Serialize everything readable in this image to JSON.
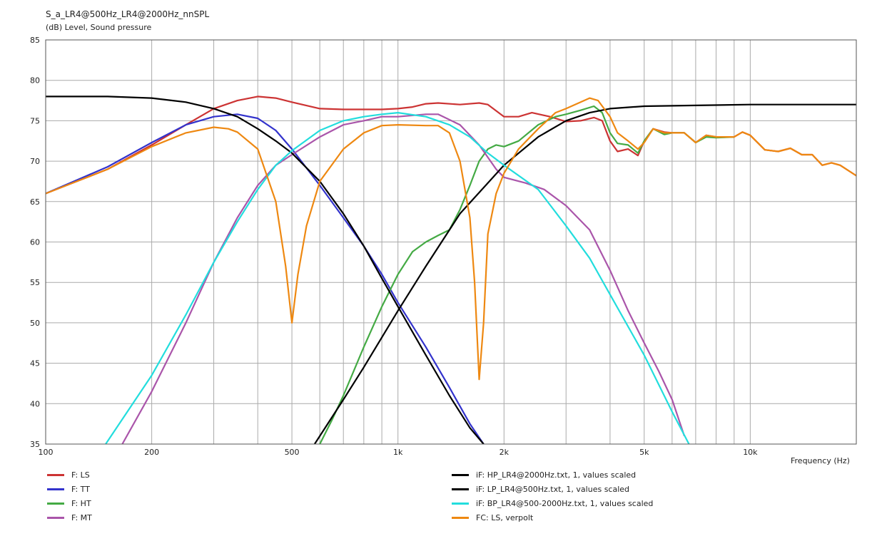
{
  "chart_data": {
    "type": "line",
    "title": "S_a_LR4@500Hz_LR4@2000Hz_nnSPL",
    "subtitle": "(dB)  Level, Sound pressure",
    "xlabel": "Frequency  (Hz)",
    "xscale": "log",
    "xlim": [
      100,
      20000
    ],
    "ylim": [
      35,
      85
    ],
    "grid": true,
    "legend_position": "bottom",
    "y_ticks": [
      "85",
      "80",
      "75",
      "70",
      "65",
      "60",
      "55",
      "50",
      "45",
      "40",
      "35"
    ],
    "x_tick_labels": [
      {
        "value": 100,
        "label": "100"
      },
      {
        "value": 200,
        "label": "200"
      },
      {
        "value": 500,
        "label": "500"
      },
      {
        "value": 1000,
        "label": "1k"
      },
      {
        "value": 2000,
        "label": "2k"
      },
      {
        "value": 5000,
        "label": "5k"
      },
      {
        "value": 10000,
        "label": "10k"
      }
    ],
    "series": [
      {
        "name": "F: LS",
        "color": "#cc3333",
        "points": [
          [
            100,
            66
          ],
          [
            150,
            69
          ],
          [
            200,
            72
          ],
          [
            250,
            74.5
          ],
          [
            300,
            76.5
          ],
          [
            350,
            77.5
          ],
          [
            400,
            78
          ],
          [
            450,
            77.8
          ],
          [
            500,
            77.3
          ],
          [
            600,
            76.5
          ],
          [
            700,
            76.4
          ],
          [
            800,
            76.4
          ],
          [
            900,
            76.4
          ],
          [
            1000,
            76.5
          ],
          [
            1100,
            76.7
          ],
          [
            1200,
            77.1
          ],
          [
            1300,
            77.2
          ],
          [
            1500,
            77
          ],
          [
            1700,
            77.2
          ],
          [
            1800,
            77
          ],
          [
            2000,
            75.5
          ],
          [
            2200,
            75.5
          ],
          [
            2400,
            76
          ],
          [
            2700,
            75.5
          ],
          [
            3000,
            74.9
          ],
          [
            3300,
            75
          ],
          [
            3600,
            75.4
          ],
          [
            3800,
            75
          ],
          [
            4000,
            72.5
          ],
          [
            4200,
            71.2
          ],
          [
            4500,
            71.5
          ],
          [
            4800,
            70.7
          ],
          [
            5000,
            72.5
          ],
          [
            5300,
            74
          ],
          [
            5700,
            73.6
          ],
          [
            6000,
            73.5
          ],
          [
            6500,
            73.5
          ],
          [
            7000,
            72.3
          ],
          [
            7500,
            73.2
          ],
          [
            8000,
            73
          ],
          [
            9000,
            73
          ],
          [
            9500,
            73.6
          ],
          [
            10000,
            73.2
          ],
          [
            11000,
            71.4
          ],
          [
            12000,
            71.2
          ],
          [
            13000,
            71.6
          ],
          [
            14000,
            70.8
          ],
          [
            15000,
            70.8
          ],
          [
            16000,
            69.5
          ],
          [
            17000,
            69.8
          ],
          [
            18000,
            69.5
          ],
          [
            20000,
            68.2
          ]
        ]
      },
      {
        "name": "F: TT",
        "color": "#3333cc",
        "points": [
          [
            100,
            66
          ],
          [
            150,
            69.3
          ],
          [
            200,
            72.3
          ],
          [
            250,
            74.5
          ],
          [
            300,
            75.5
          ],
          [
            350,
            75.8
          ],
          [
            400,
            75.3
          ],
          [
            450,
            73.8
          ],
          [
            500,
            71.5
          ],
          [
            600,
            67
          ],
          [
            700,
            63
          ],
          [
            800,
            59.5
          ],
          [
            900,
            56
          ],
          [
            1000,
            52.5
          ],
          [
            1200,
            47
          ],
          [
            1400,
            42
          ],
          [
            1600,
            37.5
          ],
          [
            1750,
            35
          ]
        ]
      },
      {
        "name": "F: HT",
        "color": "#44aa44",
        "points": [
          [
            600,
            35
          ],
          [
            650,
            38
          ],
          [
            700,
            41
          ],
          [
            800,
            47
          ],
          [
            900,
            52
          ],
          [
            1000,
            56
          ],
          [
            1100,
            58.8
          ],
          [
            1200,
            60
          ],
          [
            1300,
            60.8
          ],
          [
            1400,
            61.5
          ],
          [
            1500,
            64
          ],
          [
            1600,
            67
          ],
          [
            1700,
            70
          ],
          [
            1800,
            71.5
          ],
          [
            1900,
            72
          ],
          [
            2000,
            71.8
          ],
          [
            2200,
            72.5
          ],
          [
            2500,
            74.5
          ],
          [
            2800,
            75.5
          ],
          [
            3000,
            75.8
          ],
          [
            3300,
            76.3
          ],
          [
            3600,
            76.8
          ],
          [
            3800,
            76
          ],
          [
            4000,
            73.5
          ],
          [
            4200,
            72.2
          ],
          [
            4500,
            72
          ],
          [
            4800,
            71
          ],
          [
            5000,
            72.5
          ],
          [
            5300,
            74
          ],
          [
            5700,
            73.3
          ],
          [
            6000,
            73.5
          ],
          [
            6500,
            73.5
          ],
          [
            7000,
            72.3
          ],
          [
            7500,
            73
          ],
          [
            8000,
            72.9
          ],
          [
            9000,
            73
          ]
        ]
      },
      {
        "name": "F: MT",
        "color": "#aa55aa",
        "points": [
          [
            165,
            35
          ],
          [
            200,
            41.5
          ],
          [
            250,
            50
          ],
          [
            300,
            57.5
          ],
          [
            350,
            63
          ],
          [
            400,
            67
          ],
          [
            450,
            69.5
          ],
          [
            500,
            70.8
          ],
          [
            600,
            73
          ],
          [
            700,
            74.5
          ],
          [
            800,
            75
          ],
          [
            900,
            75.5
          ],
          [
            1000,
            75.5
          ],
          [
            1200,
            75.8
          ],
          [
            1300,
            75.8
          ],
          [
            1500,
            74.5
          ],
          [
            1700,
            72
          ],
          [
            1900,
            69
          ],
          [
            2000,
            68
          ],
          [
            2300,
            67.3
          ],
          [
            2600,
            66.5
          ],
          [
            3000,
            64.5
          ],
          [
            3500,
            61.5
          ],
          [
            4000,
            56.5
          ],
          [
            4500,
            51.5
          ],
          [
            5000,
            47.5
          ],
          [
            5500,
            44
          ],
          [
            6000,
            40.5
          ],
          [
            6500,
            36
          ]
        ]
      },
      {
        "name": "iF: HP_LR4@2000Hz.txt, 1, values scaled",
        "color": "#000000",
        "points": [
          [
            580,
            35
          ],
          [
            700,
            40.5
          ],
          [
            800,
            44.5
          ],
          [
            1000,
            51.5
          ],
          [
            1200,
            57
          ],
          [
            1500,
            63.5
          ],
          [
            2000,
            69.5
          ],
          [
            2500,
            73
          ],
          [
            3000,
            75
          ],
          [
            3500,
            76
          ],
          [
            4000,
            76.5
          ],
          [
            5000,
            76.8
          ],
          [
            7000,
            76.9
          ],
          [
            10000,
            77
          ],
          [
            20000,
            77
          ]
        ]
      },
      {
        "name": "iF: LP_LR4@500Hz.txt, 1, values scaled",
        "color": "#000000",
        "points": [
          [
            100,
            78
          ],
          [
            150,
            78
          ],
          [
            200,
            77.8
          ],
          [
            250,
            77.3
          ],
          [
            300,
            76.5
          ],
          [
            350,
            75.5
          ],
          [
            400,
            74
          ],
          [
            450,
            72.5
          ],
          [
            500,
            71
          ],
          [
            600,
            67.5
          ],
          [
            700,
            63.5
          ],
          [
            800,
            59.5
          ],
          [
            900,
            55.5
          ],
          [
            1000,
            52
          ],
          [
            1200,
            46
          ],
          [
            1400,
            41
          ],
          [
            1600,
            37
          ],
          [
            1750,
            35
          ]
        ]
      },
      {
        "name": "iF: BP_LR4@500-2000Hz.txt, 1, values scaled",
        "color": "#22dddd",
        "points": [
          [
            148,
            35
          ],
          [
            200,
            43.5
          ],
          [
            250,
            51
          ],
          [
            300,
            57.5
          ],
          [
            350,
            62.5
          ],
          [
            400,
            66.5
          ],
          [
            450,
            69.5
          ],
          [
            500,
            71.3
          ],
          [
            600,
            73.8
          ],
          [
            700,
            75
          ],
          [
            800,
            75.5
          ],
          [
            900,
            75.8
          ],
          [
            1000,
            76
          ],
          [
            1200,
            75.5
          ],
          [
            1400,
            74.5
          ],
          [
            1600,
            73
          ],
          [
            1800,
            71
          ],
          [
            2000,
            69.5
          ],
          [
            2500,
            66.5
          ],
          [
            3000,
            62
          ],
          [
            3500,
            58
          ],
          [
            4000,
            53.5
          ],
          [
            5000,
            46
          ],
          [
            6000,
            39
          ],
          [
            6700,
            35
          ]
        ]
      },
      {
        "name": "FC: LS, verpolt",
        "color": "#ee8811",
        "points": [
          [
            100,
            66
          ],
          [
            150,
            69
          ],
          [
            200,
            71.8
          ],
          [
            250,
            73.5
          ],
          [
            300,
            74.2
          ],
          [
            330,
            74
          ],
          [
            350,
            73.6
          ],
          [
            400,
            71.5
          ],
          [
            450,
            65
          ],
          [
            480,
            57
          ],
          [
            500,
            50
          ],
          [
            520,
            56
          ],
          [
            550,
            62
          ],
          [
            600,
            67.5
          ],
          [
            700,
            71.5
          ],
          [
            800,
            73.5
          ],
          [
            900,
            74.4
          ],
          [
            1000,
            74.5
          ],
          [
            1200,
            74.4
          ],
          [
            1300,
            74.4
          ],
          [
            1400,
            73.5
          ],
          [
            1500,
            70
          ],
          [
            1600,
            63
          ],
          [
            1650,
            55
          ],
          [
            1700,
            43
          ],
          [
            1750,
            50
          ],
          [
            1800,
            61
          ],
          [
            1900,
            66
          ],
          [
            2000,
            68.5
          ],
          [
            2200,
            71.5
          ],
          [
            2500,
            74
          ],
          [
            2800,
            76
          ],
          [
            3000,
            76.5
          ],
          [
            3300,
            77.3
          ],
          [
            3500,
            77.8
          ],
          [
            3700,
            77.5
          ],
          [
            4000,
            75.5
          ],
          [
            4200,
            73.5
          ],
          [
            4500,
            72.5
          ],
          [
            4800,
            71.5
          ],
          [
            5000,
            72.3
          ],
          [
            5300,
            74
          ],
          [
            5700,
            73.5
          ],
          [
            6000,
            73.5
          ],
          [
            6500,
            73.5
          ],
          [
            7000,
            72.3
          ],
          [
            7500,
            73.2
          ],
          [
            8000,
            73
          ],
          [
            9000,
            73
          ],
          [
            9500,
            73.6
          ],
          [
            10000,
            73.2
          ],
          [
            11000,
            71.4
          ],
          [
            12000,
            71.2
          ],
          [
            13000,
            71.6
          ],
          [
            14000,
            70.8
          ],
          [
            15000,
            70.8
          ],
          [
            16000,
            69.5
          ],
          [
            17000,
            69.8
          ],
          [
            18000,
            69.5
          ],
          [
            20000,
            68.2
          ]
        ]
      }
    ]
  }
}
